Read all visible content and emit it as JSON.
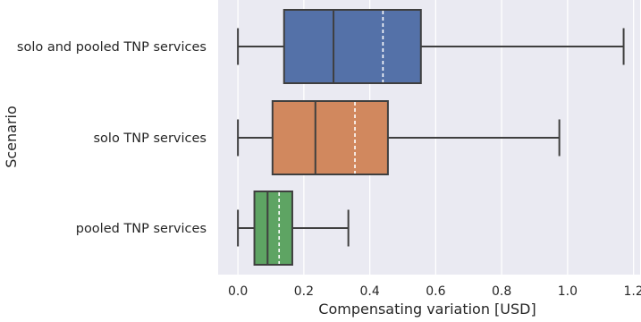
{
  "chart_data": {
    "type": "boxplot",
    "orientation": "horizontal",
    "xlabel": "Compensating variation [USD]",
    "ylabel": "Scenario",
    "xlim": [
      -0.06,
      1.22
    ],
    "xticks": [
      0.0,
      0.2,
      0.4,
      0.6,
      0.8,
      1.0,
      1.2
    ],
    "xtick_labels": [
      "0.0",
      "0.2",
      "0.4",
      "0.6",
      "0.8",
      "1.0",
      "1.2"
    ],
    "grid": true,
    "mean_line": "dashed white",
    "categories": [
      "solo and pooled TNP services",
      "solo TNP services",
      "pooled TNP services"
    ],
    "series": [
      {
        "category": "solo and pooled TNP services",
        "color": "#5471a8",
        "whisker_low": 0.0,
        "q1": 0.14,
        "median": 0.29,
        "mean": 0.44,
        "q3": 0.555,
        "whisker_high": 1.17
      },
      {
        "category": "solo TNP services",
        "color": "#d1885e",
        "whisker_low": 0.0,
        "q1": 0.105,
        "median": 0.235,
        "mean": 0.355,
        "q3": 0.455,
        "whisker_high": 0.975
      },
      {
        "category": "pooled TNP services",
        "color": "#5ea463",
        "whisker_low": 0.0,
        "q1": 0.05,
        "median": 0.09,
        "mean": 0.125,
        "q3": 0.165,
        "whisker_high": 0.335
      }
    ]
  }
}
